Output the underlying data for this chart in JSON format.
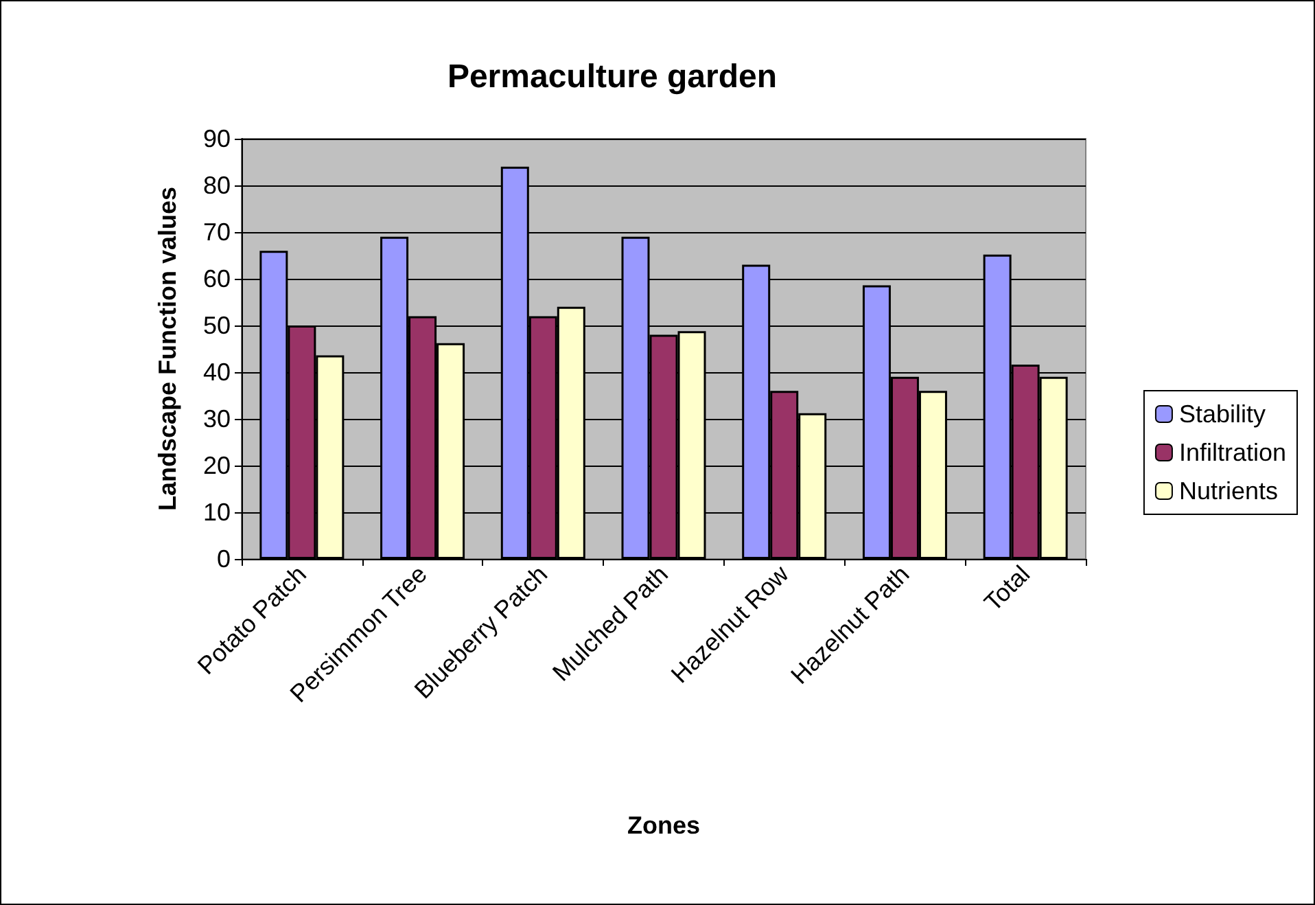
{
  "chart_data": {
    "type": "bar",
    "title": "Permaculture garden",
    "xlabel": "Zones",
    "ylabel": "Landscape Function values",
    "categories": [
      "Potato Patch",
      "Persimmon Tree",
      "Blueberry Patch",
      "Mulched Path",
      "Hazelnut Row",
      "Hazelnut Path",
      "Total"
    ],
    "series": [
      {
        "name": "Stability",
        "color": "#9999ff",
        "values": [
          66,
          69,
          84,
          69,
          63,
          58.6,
          65.2
        ]
      },
      {
        "name": "Infiltration",
        "color": "#993366",
        "values": [
          50,
          52,
          52,
          48,
          36,
          39,
          41.6
        ]
      },
      {
        "name": "Nutrients",
        "color": "#ffffcc",
        "values": [
          43.6,
          46.2,
          54,
          48.8,
          31.2,
          36,
          39
        ]
      }
    ],
    "ylim": [
      0,
      90
    ],
    "yticks": [
      0,
      10,
      20,
      30,
      40,
      50,
      60,
      70,
      80,
      90
    ],
    "grid": "y",
    "legend": "right"
  }
}
